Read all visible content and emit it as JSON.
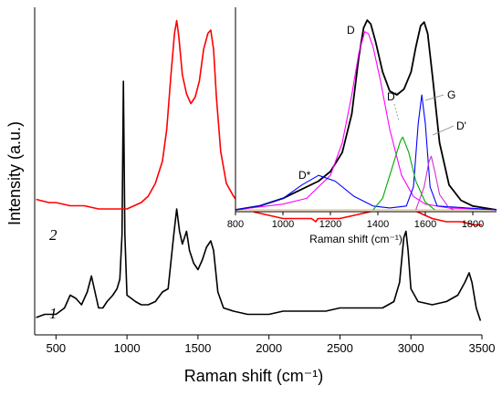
{
  "chart_data": [
    {
      "type": "line",
      "xlabel": "Raman shift (cm⁻¹)",
      "ylabel": "Intensity (a.u.)",
      "xlim": [
        350,
        3500
      ],
      "x_ticks": [
        500,
        1000,
        1500,
        2000,
        2500,
        3000,
        3500
      ],
      "y_ticks": false,
      "series": [
        {
          "name": "1",
          "color": "#000000",
          "points": [
            [
              360,
              0.04
            ],
            [
              420,
              0.05
            ],
            [
              500,
              0.05
            ],
            [
              560,
              0.07
            ],
            [
              600,
              0.11
            ],
            [
              640,
              0.1
            ],
            [
              680,
              0.08
            ],
            [
              720,
              0.12
            ],
            [
              750,
              0.17
            ],
            [
              770,
              0.13
            ],
            [
              800,
              0.07
            ],
            [
              830,
              0.07
            ],
            [
              860,
              0.09
            ],
            [
              900,
              0.11
            ],
            [
              930,
              0.13
            ],
            [
              950,
              0.16
            ],
            [
              965,
              0.3
            ],
            [
              975,
              0.78
            ],
            [
              985,
              0.3
            ],
            [
              1000,
              0.11
            ],
            [
              1030,
              0.1
            ],
            [
              1060,
              0.09
            ],
            [
              1100,
              0.08
            ],
            [
              1150,
              0.08
            ],
            [
              1200,
              0.09
            ],
            [
              1250,
              0.12
            ],
            [
              1290,
              0.13
            ],
            [
              1330,
              0.3
            ],
            [
              1350,
              0.38
            ],
            [
              1370,
              0.31
            ],
            [
              1390,
              0.27
            ],
            [
              1420,
              0.31
            ],
            [
              1440,
              0.25
            ],
            [
              1470,
              0.21
            ],
            [
              1500,
              0.19
            ],
            [
              1530,
              0.22
            ],
            [
              1560,
              0.26
            ],
            [
              1590,
              0.28
            ],
            [
              1610,
              0.25
            ],
            [
              1640,
              0.12
            ],
            [
              1680,
              0.07
            ],
            [
              1750,
              0.06
            ],
            [
              1850,
              0.05
            ],
            [
              2000,
              0.05
            ],
            [
              2100,
              0.06
            ],
            [
              2200,
              0.06
            ],
            [
              2300,
              0.06
            ],
            [
              2400,
              0.06
            ],
            [
              2500,
              0.07
            ],
            [
              2600,
              0.07
            ],
            [
              2700,
              0.07
            ],
            [
              2800,
              0.07
            ],
            [
              2880,
              0.09
            ],
            [
              2920,
              0.15
            ],
            [
              2950,
              0.29
            ],
            [
              2965,
              0.31
            ],
            [
              2980,
              0.25
            ],
            [
              3000,
              0.13
            ],
            [
              3050,
              0.09
            ],
            [
              3150,
              0.08
            ],
            [
              3250,
              0.09
            ],
            [
              3330,
              0.11
            ],
            [
              3380,
              0.15
            ],
            [
              3410,
              0.18
            ],
            [
              3430,
              0.15
            ],
            [
              3460,
              0.07
            ],
            [
              3490,
              0.03
            ]
          ]
        },
        {
          "name": "2",
          "color": "#ff0000",
          "points": [
            [
              360,
              0.41
            ],
            [
              450,
              0.4
            ],
            [
              500,
              0.4
            ],
            [
              600,
              0.39
            ],
            [
              700,
              0.39
            ],
            [
              800,
              0.38
            ],
            [
              900,
              0.38
            ],
            [
              1000,
              0.38
            ],
            [
              1050,
              0.39
            ],
            [
              1100,
              0.4
            ],
            [
              1150,
              0.42
            ],
            [
              1200,
              0.46
            ],
            [
              1250,
              0.53
            ],
            [
              1280,
              0.63
            ],
            [
              1310,
              0.8
            ],
            [
              1335,
              0.93
            ],
            [
              1350,
              0.97
            ],
            [
              1365,
              0.92
            ],
            [
              1390,
              0.8
            ],
            [
              1420,
              0.74
            ],
            [
              1450,
              0.71
            ],
            [
              1480,
              0.73
            ],
            [
              1510,
              0.78
            ],
            [
              1540,
              0.88
            ],
            [
              1570,
              0.93
            ],
            [
              1590,
              0.94
            ],
            [
              1610,
              0.88
            ],
            [
              1630,
              0.73
            ],
            [
              1660,
              0.56
            ],
            [
              1700,
              0.46
            ],
            [
              1750,
              0.42
            ],
            [
              1800,
              0.39
            ],
            [
              1900,
              0.37
            ],
            [
              2000,
              0.36
            ],
            [
              2100,
              0.35
            ],
            [
              2200,
              0.35
            ],
            [
              2300,
              0.35
            ],
            [
              2330,
              0.34
            ],
            [
              2345,
              0.35
            ],
            [
              2400,
              0.35
            ],
            [
              2500,
              0.35
            ],
            [
              2600,
              0.36
            ],
            [
              2700,
              0.37
            ],
            [
              2800,
              0.38
            ],
            [
              2860,
              0.39
            ],
            [
              2920,
              0.4
            ],
            [
              2960,
              0.39
            ],
            [
              3050,
              0.37
            ],
            [
              3150,
              0.35
            ],
            [
              3250,
              0.34
            ],
            [
              3350,
              0.34
            ],
            [
              3450,
              0.33
            ],
            [
              3500,
              0.33
            ]
          ]
        }
      ]
    },
    {
      "type": "line",
      "xlabel": "Raman shift (cm⁻¹)",
      "xlim": [
        800,
        1900
      ],
      "x_ticks": [
        800,
        1000,
        1200,
        1400,
        1600,
        1800
      ],
      "series": [
        {
          "color": "#000000",
          "points": [
            [
              800,
              0.0
            ],
            [
              900,
              0.02
            ],
            [
              950,
              0.04
            ],
            [
              1000,
              0.06
            ],
            [
              1050,
              0.09
            ],
            [
              1100,
              0.12
            ],
            [
              1150,
              0.15
            ],
            [
              1200,
              0.2
            ],
            [
              1250,
              0.3
            ],
            [
              1290,
              0.5
            ],
            [
              1320,
              0.8
            ],
            [
              1340,
              0.95
            ],
            [
              1355,
              0.99
            ],
            [
              1370,
              0.97
            ],
            [
              1390,
              0.88
            ],
            [
              1420,
              0.72
            ],
            [
              1450,
              0.62
            ],
            [
              1480,
              0.6
            ],
            [
              1510,
              0.63
            ],
            [
              1540,
              0.72
            ],
            [
              1560,
              0.85
            ],
            [
              1580,
              0.96
            ],
            [
              1595,
              0.98
            ],
            [
              1610,
              0.92
            ],
            [
              1630,
              0.7
            ],
            [
              1660,
              0.35
            ],
            [
              1700,
              0.13
            ],
            [
              1750,
              0.05
            ],
            [
              1800,
              0.02
            ],
            [
              1850,
              0.01
            ],
            [
              1900,
              0.0
            ]
          ]
        },
        {
          "color": "#ff00ff",
          "points": [
            [
              800,
              0.0
            ],
            [
              1000,
              0.03
            ],
            [
              1100,
              0.06
            ],
            [
              1200,
              0.18
            ],
            [
              1250,
              0.35
            ],
            [
              1290,
              0.6
            ],
            [
              1320,
              0.82
            ],
            [
              1345,
              0.93
            ],
            [
              1360,
              0.92
            ],
            [
              1380,
              0.85
            ],
            [
              1410,
              0.68
            ],
            [
              1450,
              0.42
            ],
            [
              1500,
              0.18
            ],
            [
              1550,
              0.07
            ],
            [
              1600,
              0.03
            ],
            [
              1700,
              0.01
            ],
            [
              1900,
              0.0
            ]
          ]
        },
        {
          "color": "#0000ff",
          "points": [
            [
              800,
              0.0
            ],
            [
              900,
              0.02
            ],
            [
              1000,
              0.06
            ],
            [
              1080,
              0.13
            ],
            [
              1150,
              0.18
            ],
            [
              1220,
              0.15
            ],
            [
              1300,
              0.07
            ],
            [
              1380,
              0.02
            ],
            [
              1450,
              0.01
            ],
            [
              1520,
              0.02
            ],
            [
              1550,
              0.12
            ],
            [
              1570,
              0.45
            ],
            [
              1585,
              0.6
            ],
            [
              1600,
              0.45
            ],
            [
              1620,
              0.12
            ],
            [
              1650,
              0.02
            ],
            [
              1900,
              0.0
            ]
          ]
        },
        {
          "color": "#00aa00",
          "points": [
            [
              1380,
              0.0
            ],
            [
              1420,
              0.06
            ],
            [
              1460,
              0.22
            ],
            [
              1495,
              0.36
            ],
            [
              1505,
              0.38
            ],
            [
              1530,
              0.3
            ],
            [
              1560,
              0.15
            ],
            [
              1600,
              0.04
            ],
            [
              1640,
              0.0
            ]
          ]
        },
        {
          "color": "#cc33cc",
          "points": [
            [
              1560,
              0.0
            ],
            [
              1595,
              0.12
            ],
            [
              1615,
              0.25
            ],
            [
              1625,
              0.28
            ],
            [
              1640,
              0.2
            ],
            [
              1660,
              0.08
            ],
            [
              1700,
              0.01
            ],
            [
              1720,
              0.0
            ]
          ]
        }
      ],
      "annotations": [
        "D*",
        "D",
        "D''",
        "G",
        "D'"
      ]
    }
  ],
  "curve_labels": [
    "1",
    "2"
  ]
}
